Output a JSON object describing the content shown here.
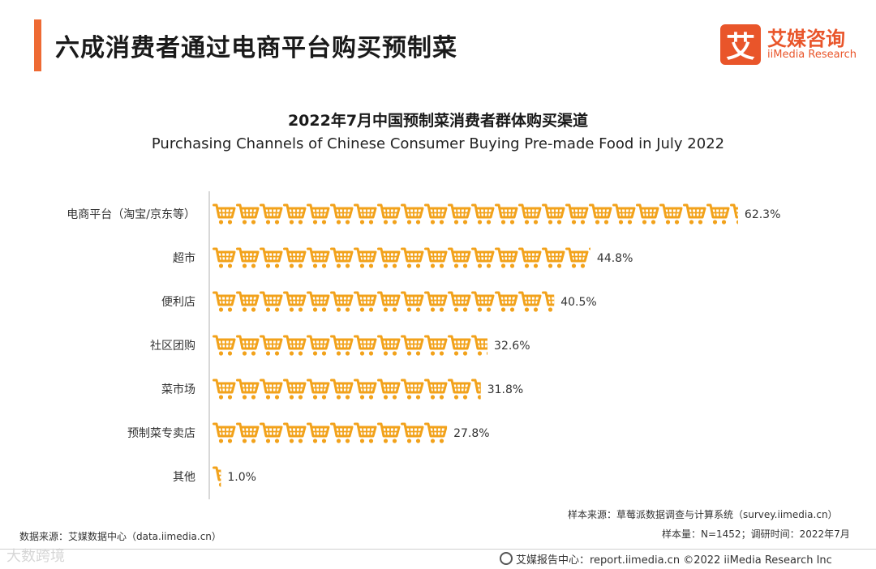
{
  "header": {
    "title": "六成消费者通过电商平台购买预制菜",
    "logo_cn": "艾媒咨询",
    "logo_en": "iiMedia Research",
    "logo_mark": "艾"
  },
  "chart_data": {
    "type": "bar",
    "title": "2022年7月中国预制菜消费者群体购买渠道",
    "subtitle": "Purchasing Channels of Chinese Consumer Buying Pre-made Food in July 2022",
    "categories": [
      "电商平台（淘宝/京东等）",
      "超市",
      "便利店",
      "社区团购",
      "菜市场",
      "预制菜专卖店",
      "其他"
    ],
    "values": [
      62.3,
      44.8,
      40.5,
      32.6,
      31.8,
      27.8,
      1.0
    ],
    "data_labels": [
      "62.3%",
      "44.8%",
      "40.5%",
      "32.6%",
      "31.8%",
      "27.8%",
      "1.0%"
    ],
    "unit": "%",
    "orientation": "horizontal",
    "mark": "shopping-cart-icon",
    "mark_color": "#f2a21b"
  },
  "notes": {
    "sample_source": "样本来源：草莓派数据调查与计算系统（survey.iimedia.cn）",
    "sample_size": "样本量：N=1452；调研时间：2022年7月",
    "data_source": "数据来源：艾媒数据中心（data.iimedia.cn）"
  },
  "footer": {
    "text": "艾媒报告中心：report.iimedia.cn   ©2022  iiMedia Research  Inc",
    "watermark": "大数跨境"
  }
}
